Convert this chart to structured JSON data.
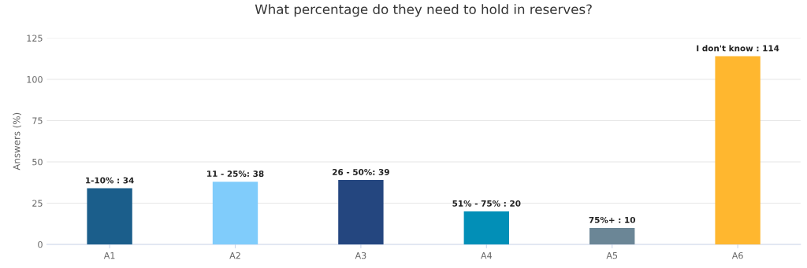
{
  "chart_data": {
    "type": "bar",
    "title": "What percentage do they need to hold in reserves?",
    "ylabel": "Answers (%)",
    "categories": [
      "A1",
      "A2",
      "A3",
      "A4",
      "A5",
      "A6"
    ],
    "values": [
      34,
      38,
      39,
      20,
      10,
      114
    ],
    "colors": [
      "#1b5e8b",
      "#80ccfb",
      "#24467f",
      "#028fb7",
      "#6b8696",
      "#ffb72f"
    ],
    "value_labels": [
      "1-10% : 34",
      "11 - 25%: 38",
      "26 - 50%: 39",
      "51% - 75% : 20",
      "75%+ : 10",
      "I don't know : 114"
    ],
    "ylim": [
      0,
      125
    ],
    "yticks": [
      0,
      25,
      50,
      75,
      100,
      125
    ],
    "grid": "y"
  }
}
